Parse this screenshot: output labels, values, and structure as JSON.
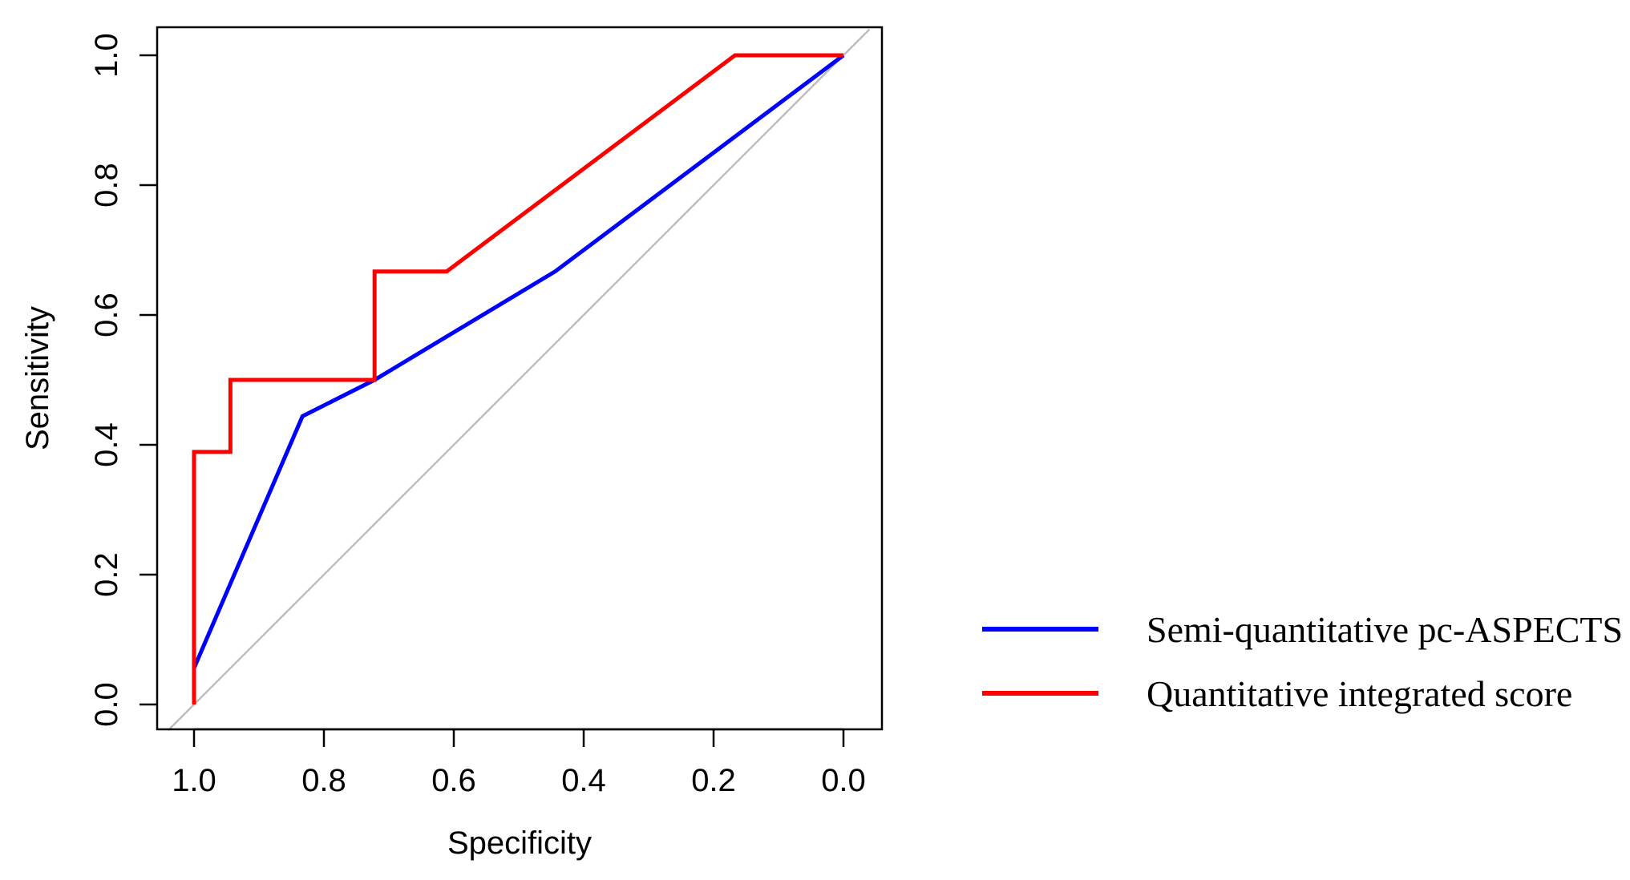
{
  "chart_data": {
    "type": "line",
    "title": "",
    "xlabel": "Specificity",
    "ylabel": "Sensitivity",
    "xlim": [
      1.0,
      0.0
    ],
    "ylim": [
      0.0,
      1.0
    ],
    "x_reversed": true,
    "x_ticks": [
      1.0,
      0.8,
      0.6,
      0.4,
      0.2,
      0.0
    ],
    "x_tick_labels": [
      "1.0",
      "0.8",
      "0.6",
      "0.4",
      "0.2",
      "0.0"
    ],
    "y_ticks": [
      0.0,
      0.2,
      0.4,
      0.6,
      0.8,
      1.0
    ],
    "y_tick_labels": [
      "0.0",
      "0.2",
      "0.4",
      "0.6",
      "0.8",
      "1.0"
    ],
    "grid": false,
    "legend_position": "bottom-right, outside plot",
    "reference_line": {
      "from": [
        1.04,
        -0.04
      ],
      "to": [
        -0.04,
        1.04
      ],
      "color": "#bebebe"
    },
    "series": [
      {
        "name": "Semi-quantitative pc-ASPECTS",
        "color": "#0000ff",
        "points": [
          [
            1.0,
            0.0
          ],
          [
            1.0,
            0.056
          ],
          [
            0.833,
            0.444
          ],
          [
            0.722,
            0.5
          ],
          [
            0.444,
            0.667
          ],
          [
            0.0,
            1.0
          ]
        ]
      },
      {
        "name": "Quantitative integrated score",
        "color": "#ff0000",
        "points": [
          [
            1.0,
            0.0
          ],
          [
            1.0,
            0.389
          ],
          [
            0.944,
            0.389
          ],
          [
            0.944,
            0.5
          ],
          [
            0.722,
            0.5
          ],
          [
            0.722,
            0.667
          ],
          [
            0.611,
            0.667
          ],
          [
            0.167,
            1.0
          ],
          [
            0.0,
            1.0
          ]
        ]
      }
    ]
  }
}
